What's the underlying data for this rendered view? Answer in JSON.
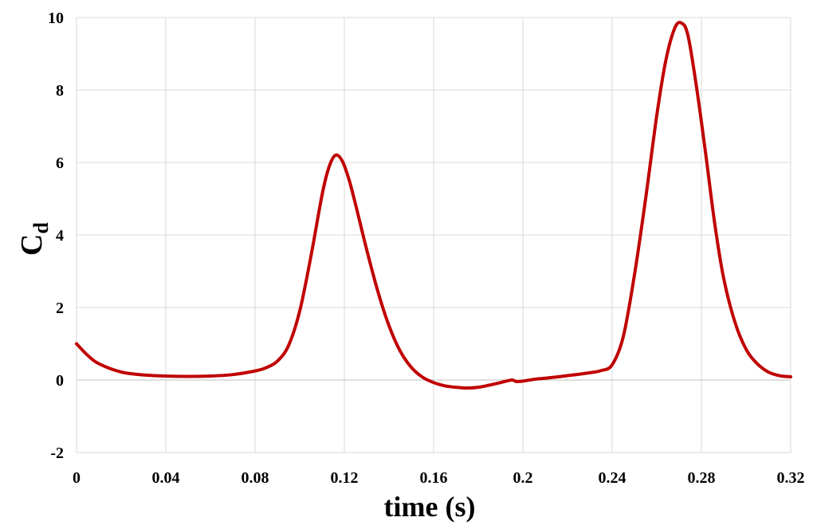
{
  "chart_data": {
    "type": "line",
    "title": "",
    "xlabel": "time (s)",
    "ylabel_main": "C",
    "ylabel_sub": "d",
    "xlim": [
      0,
      0.32
    ],
    "ylim": [
      -2,
      10
    ],
    "xticks": [
      0,
      0.04,
      0.08,
      0.12,
      0.16,
      0.2,
      0.24,
      0.28,
      0.32
    ],
    "xtick_labels": [
      "0",
      "0.04",
      "0.08",
      "0.12",
      "0.16",
      "0.2",
      "0.24",
      "0.28",
      "0.32"
    ],
    "yticks": [
      -2,
      0,
      2,
      4,
      6,
      8,
      10
    ],
    "ytick_labels": [
      "-2",
      "0",
      "2",
      "4",
      "6",
      "8",
      "10"
    ],
    "grid": true,
    "legend": "none",
    "line_color": "#c00000",
    "series": [
      {
        "x": [
          0,
          0.005,
          0.01,
          0.02,
          0.03,
          0.04,
          0.05,
          0.06,
          0.07,
          0.08,
          0.085,
          0.09,
          0.095,
          0.1,
          0.105,
          0.11,
          0.113,
          0.116,
          0.119,
          0.122,
          0.125,
          0.13,
          0.135,
          0.14,
          0.145,
          0.15,
          0.155,
          0.16,
          0.165,
          0.17,
          0.175,
          0.18,
          0.185,
          0.19,
          0.195,
          0.197,
          0.2,
          0.205,
          0.21,
          0.22,
          0.23,
          0.235,
          0.24,
          0.245,
          0.25,
          0.255,
          0.26,
          0.264,
          0.268,
          0.271,
          0.274,
          0.278,
          0.282,
          0.286,
          0.29,
          0.295,
          0.3,
          0.305,
          0.31,
          0.315,
          0.32
        ],
        "y": [
          1.0,
          0.68,
          0.45,
          0.22,
          0.14,
          0.11,
          0.1,
          0.11,
          0.15,
          0.25,
          0.34,
          0.52,
          0.95,
          1.9,
          3.4,
          5.1,
          5.85,
          6.2,
          6.05,
          5.55,
          4.85,
          3.6,
          2.45,
          1.5,
          0.8,
          0.35,
          0.08,
          -0.07,
          -0.16,
          -0.2,
          -0.22,
          -0.2,
          -0.14,
          -0.07,
          0.0,
          -0.04,
          -0.03,
          0.02,
          0.05,
          0.12,
          0.2,
          0.26,
          0.42,
          1.2,
          2.9,
          5.0,
          7.3,
          8.8,
          9.7,
          9.85,
          9.5,
          8.0,
          6.2,
          4.3,
          2.8,
          1.6,
          0.85,
          0.45,
          0.22,
          0.12,
          0.09
        ]
      }
    ]
  }
}
